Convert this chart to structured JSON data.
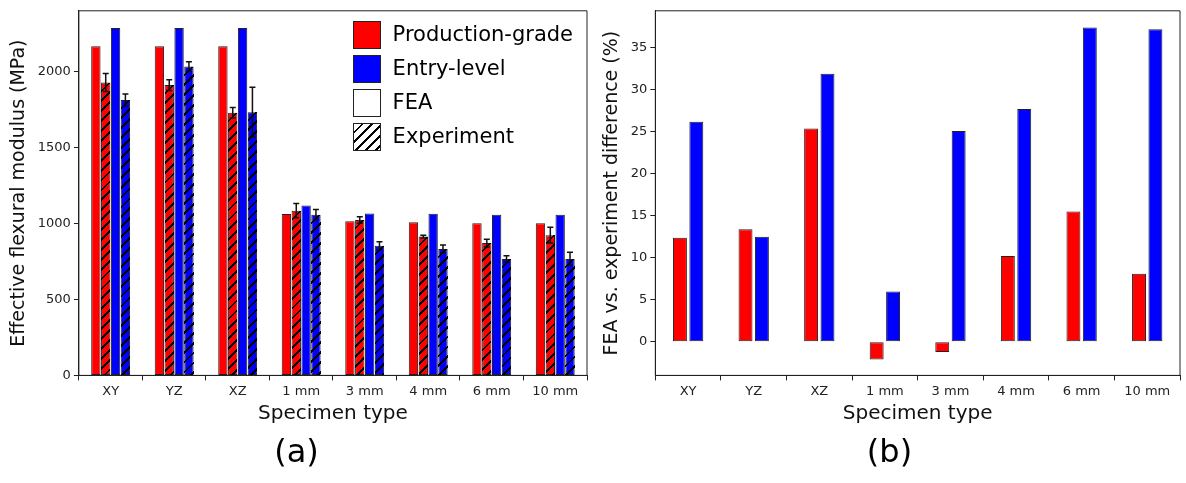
{
  "chart_data": [
    {
      "type": "bar",
      "categories": [
        "XY",
        "YZ",
        "XZ",
        "1 mm",
        "3 mm",
        "4 mm",
        "6 mm",
        "10 mm"
      ],
      "xlabel": "Specimen type",
      "ylabel": "Effective flexural modulus (MPa)",
      "ylim": [
        0,
        2400
      ],
      "yticks": [
        0,
        500,
        1000,
        1500,
        2000
      ],
      "legend": "top right",
      "annotations": [
        "FEA",
        "Experiment",
        "(a)"
      ],
      "series": [
        {
          "name": "Production-grade",
          "color": "#ff0000",
          "values": [
            2167,
            2167,
            2167,
            1062,
            1014,
            1008,
            1001,
            1001
          ]
        },
        {
          "color": "#ff0000",
          "values": [
            1928,
            1911,
            1729,
            1084,
            1023,
            914,
            871,
            923
          ],
          "errors": [
            60,
            35,
            34,
            47,
            22,
            9,
            26,
            52
          ]
        },
        {
          "name": "Entry-level",
          "color": "#0000ff",
          "values": [
            2287,
            2287,
            2287,
            1118,
            1066,
            1064,
            1058,
            1058
          ]
        },
        {
          "color": "#0000ff",
          "values": [
            1813,
            2033,
            1733,
            1058,
            853,
            832,
            767,
            767
          ],
          "errors": [
            40,
            32,
            163,
            34,
            27,
            26,
            21,
            43
          ]
        }
      ]
    },
    {
      "type": "bar",
      "categories": [
        "XY",
        "YZ",
        "XZ",
        "1 mm",
        "3 mm",
        "4 mm",
        "6 mm",
        "10 mm"
      ],
      "xlabel": "Specimen type",
      "ylabel": "FEA vs. experiment difference (%)",
      "ylim": [
        -4,
        39.4
      ],
      "yticks": [
        0,
        5,
        10,
        15,
        20,
        25,
        30,
        35
      ],
      "annotations": [
        "(b)"
      ],
      "series": [
        {
          "color": "#ff0000",
          "values": [
            12.4,
            13.4,
            25.4,
            -2.1,
            -1.2,
            10.2,
            15.5,
            8.1
          ]
        },
        {
          "color": "#0000ff",
          "values": [
            26.2,
            12.5,
            31.9,
            6.0,
            25.1,
            27.7,
            37.4,
            37.2
          ]
        }
      ]
    }
  ]
}
